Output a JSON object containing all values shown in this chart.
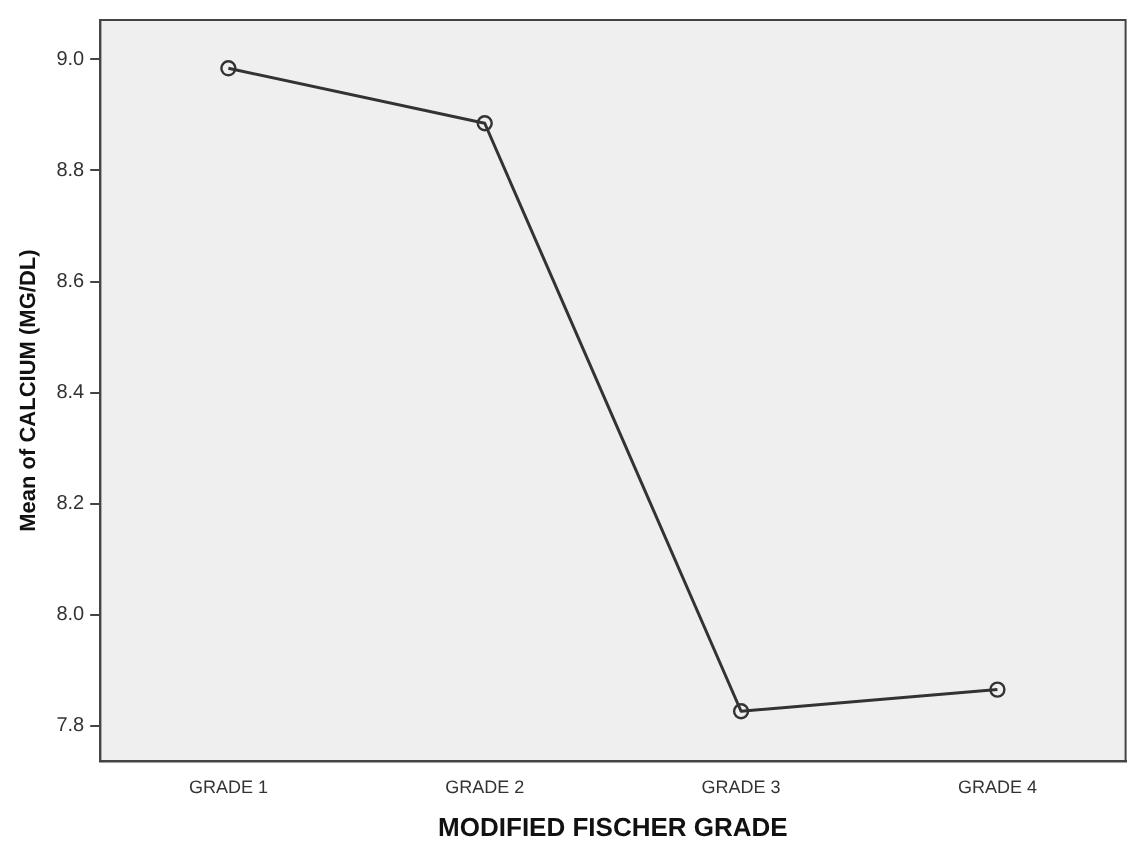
{
  "chart_data": {
    "type": "line",
    "xlabel": "MODIFIED FISCHER GRADE",
    "ylabel": "Mean of CALCIUM (MG/DL)",
    "categories": [
      "GRADE 1",
      "GRADE 2",
      "GRADE 3",
      "GRADE 4"
    ],
    "series": [
      {
        "color": "#333333",
        "values": [
          8.984,
          8.885,
          7.826,
          7.865
        ]
      }
    ],
    "ylim": [
      7.736,
      9.071
    ],
    "yticks": [
      7.8,
      {
        "value": 8,
        "label": "8.0"
      },
      8.2,
      8.4,
      8.6,
      8.8,
      {
        "value": 9,
        "label": "9.0"
      }
    ],
    "grid": false,
    "legend": false,
    "marker": "circle",
    "line_style": "solid"
  }
}
